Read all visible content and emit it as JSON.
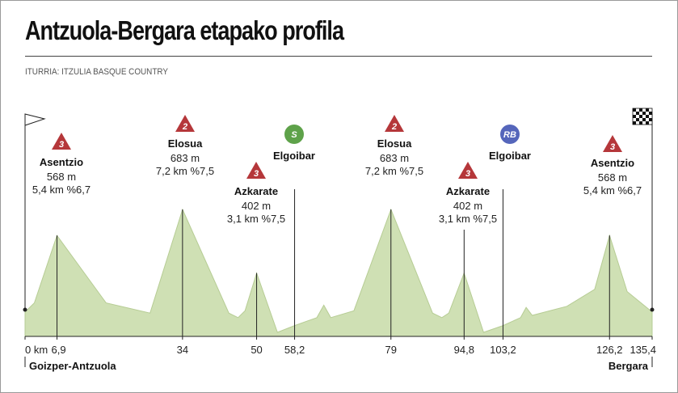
{
  "header": {
    "title": "Antzuola-Bergara etapako profila",
    "source": "ITURRIA: ITZULIA BASQUE COUNTRY"
  },
  "colors": {
    "fill": "#cfe0b4",
    "outline": "#b6cc94",
    "climb_marker": "#b5373a",
    "sprint_marker": "#5ea24a",
    "rb_marker": "#5566bb",
    "line": "#222222"
  },
  "chart_data": {
    "type": "area",
    "title": "Antzuola-Bergara etapako profila",
    "xlabel": "",
    "ylabel": "",
    "xlim": [
      0,
      135.4
    ],
    "ylim": [
      130,
      760
    ],
    "grid": false,
    "x_ticks": [
      {
        "value": 0,
        "label": "0 km"
      },
      {
        "value": 6.9,
        "label": "6,9"
      },
      {
        "value": 34,
        "label": "34"
      },
      {
        "value": 50,
        "label": "50"
      },
      {
        "value": 58.2,
        "label": "58,2"
      },
      {
        "value": 79,
        "label": "79"
      },
      {
        "value": 94.8,
        "label": "94,8"
      },
      {
        "value": 103.2,
        "label": "103,2"
      },
      {
        "value": 126.2,
        "label": "126,2"
      },
      {
        "value": 135.4,
        "label": "135,4"
      }
    ],
    "towns": [
      {
        "km": 0,
        "name": "Goizper-Antzuola",
        "anchor": "start"
      },
      {
        "km": 135.4,
        "name": "Bergara",
        "anchor": "end"
      }
    ],
    "profile": [
      {
        "x": 0,
        "y": 230
      },
      {
        "x": 2,
        "y": 270
      },
      {
        "x": 6.9,
        "y": 568
      },
      {
        "x": 17.5,
        "y": 270
      },
      {
        "x": 27,
        "y": 225
      },
      {
        "x": 34,
        "y": 683
      },
      {
        "x": 44,
        "y": 225
      },
      {
        "x": 46,
        "y": 205
      },
      {
        "x": 47.5,
        "y": 235
      },
      {
        "x": 50,
        "y": 402
      },
      {
        "x": 54.5,
        "y": 140
      },
      {
        "x": 58.2,
        "y": 170
      },
      {
        "x": 63,
        "y": 205
      },
      {
        "x": 64.5,
        "y": 260
      },
      {
        "x": 66,
        "y": 205
      },
      {
        "x": 71,
        "y": 235
      },
      {
        "x": 79,
        "y": 683
      },
      {
        "x": 88,
        "y": 225
      },
      {
        "x": 90,
        "y": 205
      },
      {
        "x": 91.5,
        "y": 225
      },
      {
        "x": 94.8,
        "y": 402
      },
      {
        "x": 99,
        "y": 140
      },
      {
        "x": 103.2,
        "y": 170
      },
      {
        "x": 107,
        "y": 205
      },
      {
        "x": 108.2,
        "y": 250
      },
      {
        "x": 109.5,
        "y": 215
      },
      {
        "x": 117,
        "y": 255
      },
      {
        "x": 123,
        "y": 330
      },
      {
        "x": 126.2,
        "y": 568
      },
      {
        "x": 130,
        "y": 320
      },
      {
        "x": 135.4,
        "y": 230
      }
    ],
    "points": [
      {
        "km": 6.9,
        "alt": 568,
        "kind": "climb",
        "badge": "3",
        "name": "Asentzio",
        "lines": [
          "568 m",
          "5,4 km %6,7"
        ]
      },
      {
        "km": 34,
        "alt": 683,
        "kind": "climb",
        "badge": "2",
        "name": "Elosua",
        "lines": [
          "683 m",
          "7,2 km %7,5"
        ]
      },
      {
        "km": 50,
        "alt": 402,
        "kind": "climb",
        "badge": "3",
        "name": "Azkarate",
        "lines": [
          "402 m",
          "3,1 km %7,5"
        ]
      },
      {
        "km": 58.2,
        "alt": 170,
        "kind": "sprint",
        "badge": "S",
        "name": "Elgoibar",
        "lines": []
      },
      {
        "km": 79,
        "alt": 683,
        "kind": "climb",
        "badge": "2",
        "name": "Elosua",
        "lines": [
          "683 m",
          "7,2 km %7,5"
        ]
      },
      {
        "km": 94.8,
        "alt": 402,
        "kind": "climb",
        "badge": "3",
        "name": "Azkarate",
        "lines": [
          "402 m",
          "3,1 km %7,5"
        ]
      },
      {
        "km": 103.2,
        "alt": 170,
        "kind": "rb",
        "badge": "RB",
        "name": "Elgoibar",
        "lines": []
      },
      {
        "km": 126.2,
        "alt": 568,
        "kind": "climb",
        "badge": "3",
        "name": "Asentzio",
        "lines": [
          "568 m",
          "5,4 km %6,7"
        ]
      }
    ]
  }
}
